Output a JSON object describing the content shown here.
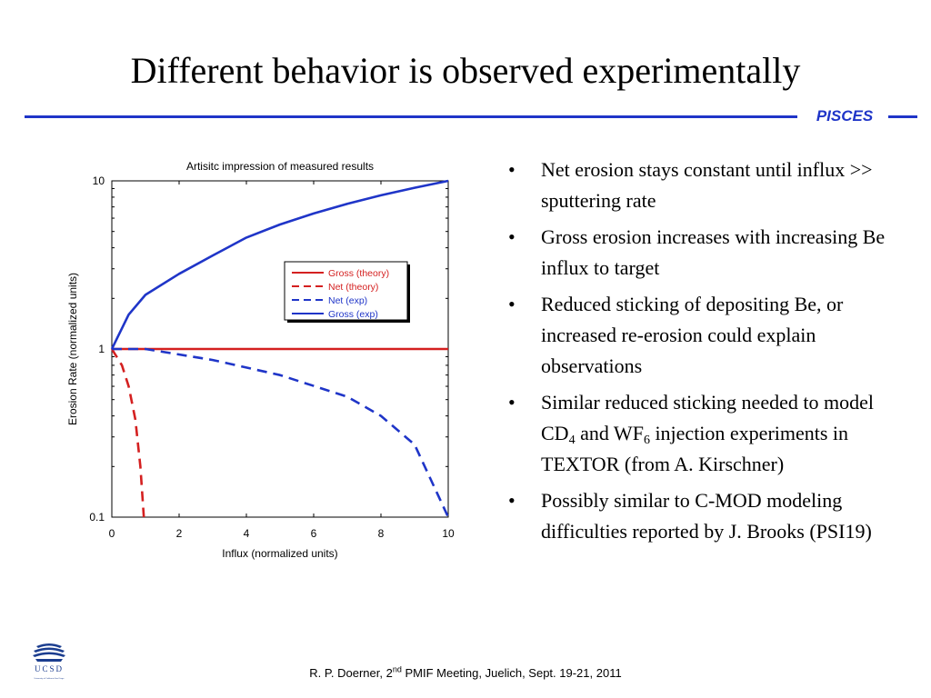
{
  "slide": {
    "title": "Different behavior is observed experimentally",
    "brand": "PISCES",
    "accent_color": "#1f35c8"
  },
  "bullets": [
    {
      "text": "Net erosion stays constant until influx >> sputtering rate"
    },
    {
      "text": "Gross erosion increases with increasing Be influx to target"
    },
    {
      "text": "Reduced sticking of depositing Be, or increased re-erosion could explain observations"
    },
    {
      "parts": [
        {
          "t": "Similar reduced sticking needed to model CD"
        },
        {
          "sub": "4"
        },
        {
          "t": " and WF"
        },
        {
          "sub": "6"
        },
        {
          "t": " injection experiments in TEXTOR (from A. Kirschner)"
        }
      ]
    },
    {
      "text": "Possibly similar to C-MOD modeling difficulties reported by J. Brooks (PSI19)"
    }
  ],
  "bullet_symbol": "•",
  "footer": {
    "pre": "R. P. Doerner, 2",
    "sup": "nd",
    "post": " PMIF Meeting, Juelich, Sept. 19-21, 2011"
  },
  "logo": {
    "icon": "ucsd-logo-icon",
    "text": "UCSD",
    "subtext": "University of California San Diego"
  },
  "chart_data": {
    "type": "line",
    "title": "Artisitc impression of measured results",
    "xlabel": "Influx (normalized units)",
    "ylabel": "Erosion Rate (normalized units)",
    "xlim": [
      0,
      10
    ],
    "ylim": [
      0.1,
      10
    ],
    "yscale": "log",
    "xticks": [
      0,
      2,
      4,
      6,
      8,
      10
    ],
    "yticks": [
      0.1,
      1,
      10
    ],
    "xtick_labels": [
      "0",
      "2",
      "4",
      "6",
      "8",
      "10"
    ],
    "ytick_labels": [
      "0.1",
      "1",
      "10"
    ],
    "grid": false,
    "legend_position": "upper-right",
    "series": [
      {
        "name": "Gross (theory)",
        "color": "#d42020",
        "dash": "solid",
        "x": [
          0,
          10
        ],
        "y": [
          1,
          1
        ]
      },
      {
        "name": "Net (theory)",
        "color": "#d42020",
        "dash": "dashed",
        "x": [
          0,
          0.3,
          0.5,
          0.7,
          0.85,
          0.95
        ],
        "y": [
          1,
          0.8,
          0.6,
          0.38,
          0.2,
          0.1
        ]
      },
      {
        "name": "Net (exp)",
        "color": "#1f35c8",
        "dash": "dashed",
        "x": [
          0,
          1,
          3,
          5,
          7,
          8,
          9,
          10
        ],
        "y": [
          1,
          1,
          0.86,
          0.7,
          0.52,
          0.4,
          0.27,
          0.1
        ]
      },
      {
        "name": "Gross (exp)",
        "color": "#1f35c8",
        "dash": "solid",
        "x": [
          0,
          0.5,
          1,
          2,
          3,
          4,
          5,
          6,
          7,
          8,
          9,
          10
        ],
        "y": [
          1,
          1.6,
          2.1,
          2.8,
          3.6,
          4.6,
          5.5,
          6.4,
          7.3,
          8.2,
          9.1,
          10
        ]
      }
    ]
  }
}
